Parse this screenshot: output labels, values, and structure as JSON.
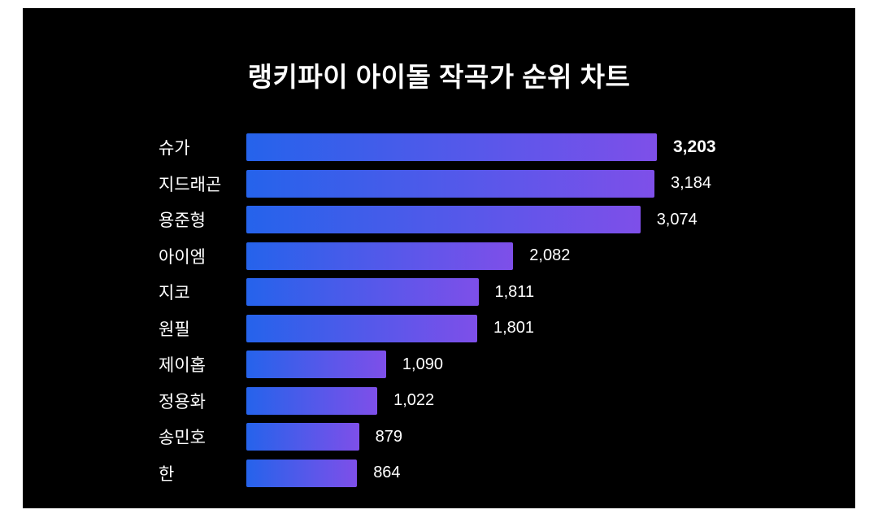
{
  "title": "랭키파이 아이돌 작곡가 순위 차트",
  "colors": {
    "page_background": "#ffffff",
    "card_background": "#000000",
    "text": "#ffffff",
    "bar_gradient_start": "#2563eb",
    "bar_gradient_end": "#7e4fe9"
  },
  "chart_data": {
    "type": "bar",
    "orientation": "horizontal",
    "title": "랭키파이 아이돌 작곡가 순위 차트",
    "categories": [
      "슈가",
      "지드래곤",
      "용준형",
      "아이엠",
      "지코",
      "원필",
      "제이홉",
      "정용화",
      "송민호",
      "한"
    ],
    "values": [
      3203,
      3184,
      3074,
      2082,
      1811,
      1801,
      1090,
      1022,
      879,
      864
    ],
    "value_labels": [
      "3,203",
      "3,184",
      "3,074",
      "2,082",
      "1,811",
      "1,801",
      "1,090",
      "1,022",
      "879",
      "864"
    ],
    "max_value": 3203,
    "xlim": [
      0,
      3203
    ],
    "highlight_first": true,
    "grid": false,
    "legend": false,
    "value_label_position": "right-of-bar"
  }
}
